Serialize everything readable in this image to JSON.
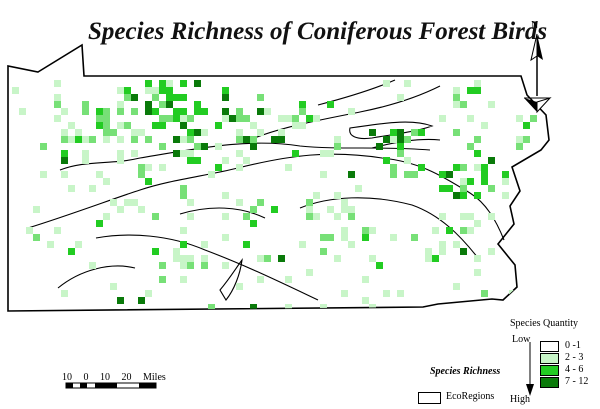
{
  "map": {
    "title": "Species Richness of Coniferous Forest Birds",
    "north_label": "N",
    "legend": {
      "title": "Species Quantity",
      "classes": [
        {
          "label": "0 -1",
          "color": "#ffffff"
        },
        {
          "label": "2 - 3",
          "color": "#c8f5c8"
        },
        {
          "label": "4 - 6",
          "color": "#22cc22"
        },
        {
          "label": "7 - 12",
          "color": "#0a7a0a"
        }
      ],
      "gradient_low": "Low",
      "gradient_high": "High",
      "gradient_label": "Species Richness",
      "ecoregions_label": "EcoRegions"
    },
    "scale_bar": {
      "ticks": [
        "10",
        "0",
        "10",
        "20"
      ],
      "unit": "Miles"
    }
  }
}
